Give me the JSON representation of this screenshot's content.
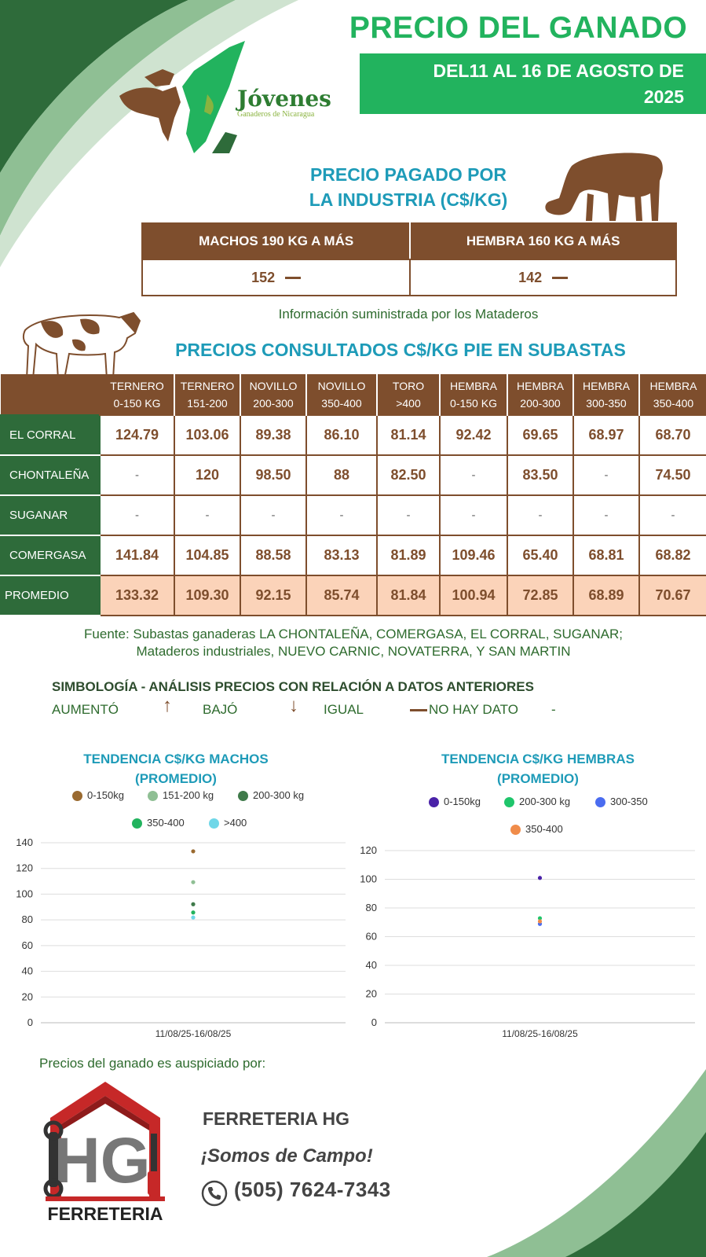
{
  "header": {
    "title": "PRECIO DEL GANADO",
    "date_line1": "DEL11 AL 16 DE AGOSTO  DE",
    "date_line2": "2025"
  },
  "logo": {
    "name": "Jóvenes",
    "subtitle": "Ganaderos de Nicaragua"
  },
  "industry": {
    "title_line1": "PRECIO PAGADO POR",
    "title_line2": "LA INDUSTRIA (C$/KG)",
    "headers": [
      "MACHOS 190 KG A MÁS",
      "HEMBRA 160 KG A MÁS"
    ],
    "values": [
      "152",
      "142"
    ],
    "note": "Información suministrada por los Mataderos"
  },
  "auctions": {
    "title": "PRECIOS CONSULTADOS  C$/KG PIE EN SUBASTAS",
    "columns": [
      {
        "l1": "TERNERO",
        "l2": "0-150 KG"
      },
      {
        "l1": "TERNERO",
        "l2": "151-200"
      },
      {
        "l1": "NOVILLO",
        "l2": "200-300"
      },
      {
        "l1": "NOVILLO",
        "l2": "350-400"
      },
      {
        "l1": "TORO",
        "l2": ">400"
      },
      {
        "l1": "HEMBRA",
        "l2": "0-150 KG"
      },
      {
        "l1": "HEMBRA",
        "l2": "200-300"
      },
      {
        "l1": "HEMBRA",
        "l2": "300-350"
      },
      {
        "l1": "HEMBRA",
        "l2": "350-400"
      }
    ],
    "rows": [
      {
        "name": "EL CORRAL",
        "values": [
          "124.79",
          "103.06",
          "89.38",
          "86.10",
          "81.14",
          "92.42",
          "69.65",
          "68.97",
          "68.70"
        ]
      },
      {
        "name": "CHONTALEÑA",
        "values": [
          "-",
          "120",
          "98.50",
          "88",
          "82.50",
          "-",
          "83.50",
          "-",
          "74.50"
        ]
      },
      {
        "name": "SUGANAR",
        "values": [
          "-",
          "-",
          "-",
          "-",
          "-",
          "-",
          "-",
          "-",
          "-"
        ]
      },
      {
        "name": "COMERGASA",
        "values": [
          "141.84",
          "104.85",
          "88.58",
          "83.13",
          "81.89",
          "109.46",
          "65.40",
          "68.81",
          "68.82"
        ]
      }
    ],
    "average": {
      "name": "PROMEDIO",
      "values": [
        "133.32",
        "109.30",
        "92.15",
        "85.74",
        "81.84",
        "100.94",
        "72.85",
        "68.89",
        "70.67"
      ]
    }
  },
  "source": {
    "line1": "Fuente: Subastas ganaderas LA CHONTALEÑA, COMERGASA, EL CORRAL, SUGANAR;",
    "line2": "Mataderos industriales, NUEVO CARNIC, NOVATERRA, Y SAN MARTIN"
  },
  "legend_symbols": {
    "title": "SIMBOLOGÍA - ANÁLISIS PRECIOS CON RELACIÓN A DATOS ANTERIORES",
    "up": "AUMENTÓ",
    "down": "BAJÓ",
    "equal": "IGUAL",
    "no_data": "NO HAY DATO",
    "no_data_symbol": "-",
    "up_arrow": "↑",
    "down_arrow": "↓"
  },
  "chart_data": [
    {
      "type": "scatter",
      "title_line1": "TENDENCIA C$/KG MACHOS",
      "title_line2": "(PROMEDIO)",
      "categories": [
        "11/08/25-16/08/25"
      ],
      "ylim": [
        0,
        140
      ],
      "yticks": [
        0,
        20,
        40,
        60,
        80,
        100,
        120,
        140
      ],
      "grid": true,
      "legend_position": "top",
      "series": [
        {
          "name": "0-150kg",
          "color": "#9a6a30",
          "values": [
            133.32
          ]
        },
        {
          "name": "151-200 kg",
          "color": "#8fbf94",
          "values": [
            109.3
          ]
        },
        {
          "name": "200-300 kg",
          "color": "#3f7a4a",
          "values": [
            92.15
          ]
        },
        {
          "name": "350-400",
          "color": "#22b35e",
          "values": [
            85.74
          ]
        },
        {
          "name": ">400",
          "color": "#6fd7e8",
          "values": [
            81.84
          ]
        }
      ]
    },
    {
      "type": "scatter",
      "title_line1": "TENDENCIA C$/KG HEMBRAS",
      "title_line2": "(PROMEDIO)",
      "categories": [
        "11/08/25-16/08/25"
      ],
      "ylim": [
        0,
        120
      ],
      "yticks": [
        0,
        20,
        40,
        60,
        80,
        100,
        120
      ],
      "grid": true,
      "legend_position": "top",
      "series": [
        {
          "name": "0-150kg",
          "color": "#4a22a8",
          "values": [
            100.94
          ]
        },
        {
          "name": "200-300 kg",
          "color": "#1fc56b",
          "values": [
            72.85
          ]
        },
        {
          "name": "300-350",
          "color": "#4a6cf0",
          "values": [
            68.89
          ]
        },
        {
          "name": "350-400",
          "color": "#f08c4a",
          "values": [
            70.67
          ]
        }
      ]
    }
  ],
  "sponsor": {
    "intro": "Precios del ganado es auspiciado por:",
    "name": "FERRETERIA HG",
    "slogan": "¡Somos de Campo!",
    "phone": "(505) 7624-7343",
    "logo_text": "FERRETERIA",
    "logo_letters": "HG"
  },
  "colors": {
    "green": "#22b35e",
    "dark_green": "#2e6b3a",
    "brown": "#7e4e2d",
    "teal": "#1e9bb8",
    "peach": "#fbd3b9"
  }
}
